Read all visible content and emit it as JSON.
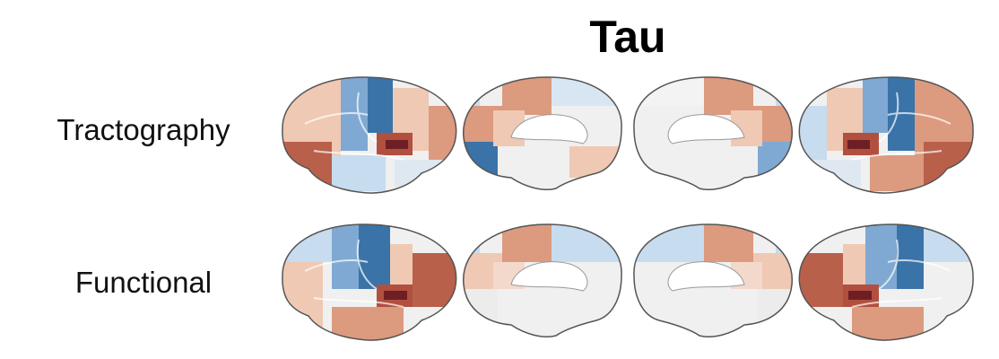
{
  "title": "Tau",
  "rows": [
    {
      "label": "Tractography"
    },
    {
      "label": "Functional"
    }
  ],
  "colors": {
    "dark_blue": "#3a73a8",
    "mid_blue": "#7fa9d2",
    "light_blue": "#c7dcee",
    "white": "#f2f2f2",
    "light_red": "#efc9b4",
    "mid_red": "#dc9a7f",
    "dark_red": "#b1503f",
    "deep_red": "#6e1f26"
  }
}
